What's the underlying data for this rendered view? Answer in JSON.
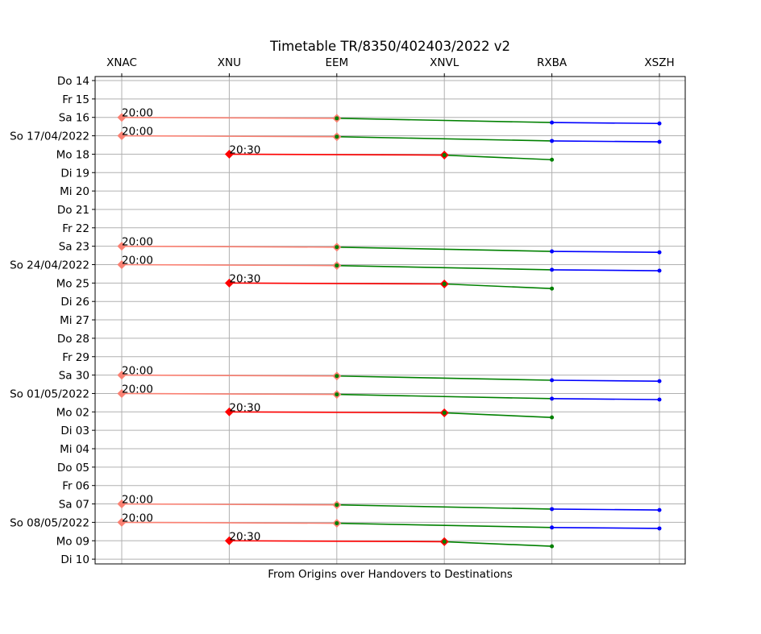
{
  "chart_data": {
    "type": "line",
    "title": "Timetable TR/8350/402403/2022 v2",
    "xlabel": "From Origins over Handovers to Destinations",
    "ylabel": "",
    "grid": true,
    "x_categories": [
      "XNAC",
      "XNU",
      "EEM",
      "XNVL",
      "RXBA",
      "XSZH"
    ],
    "y_ticks": [
      "Do 14",
      "Fr 15",
      "Sa 16",
      "So 17/04/2022",
      "Mo 18",
      "Di 19",
      "Mi 20",
      "Do 21",
      "Fr 22",
      "Sa 23",
      "So 24/04/2022",
      "Mo 25",
      "Di 26",
      "Mi 27",
      "Do 28",
      "Fr 29",
      "Sa 30",
      "So 01/05/2022",
      "Mo 02",
      "Di 03",
      "Mi 04",
      "Do 05",
      "Fr 06",
      "Sa 07",
      "So 08/05/2022",
      "Mo 09",
      "Di 10"
    ],
    "y_inverted": true,
    "colors": {
      "origin_leg": "#fa8072",
      "xnu_leg": "#ff0000",
      "handover_leg": "#008000",
      "destination_leg": "#0000ff"
    },
    "trips": [
      {
        "label": "20:00",
        "start": "Sa 16",
        "points": [
          [
            "XNAC",
            2.0
          ],
          [
            "EEM",
            2.05
          ],
          [
            "RXBA",
            2.28
          ],
          [
            "XSZH",
            2.33
          ]
        ]
      },
      {
        "label": "20:00",
        "start": "So 17/04/2022",
        "points": [
          [
            "XNAC",
            3.0
          ],
          [
            "EEM",
            3.05
          ],
          [
            "RXBA",
            3.28
          ],
          [
            "XSZH",
            3.33
          ]
        ]
      },
      {
        "label": "20:30",
        "start": "Mo 18",
        "points": [
          [
            "XNU",
            4.0
          ],
          [
            "XNVL",
            4.05
          ],
          [
            "RXBA",
            4.3
          ]
        ]
      },
      {
        "label": "20:00",
        "start": "Sa 23",
        "points": [
          [
            "XNAC",
            9.0
          ],
          [
            "EEM",
            9.05
          ],
          [
            "RXBA",
            9.28
          ],
          [
            "XSZH",
            9.33
          ]
        ]
      },
      {
        "label": "20:00",
        "start": "So 24/04/2022",
        "points": [
          [
            "XNAC",
            10.0
          ],
          [
            "EEM",
            10.05
          ],
          [
            "RXBA",
            10.28
          ],
          [
            "XSZH",
            10.33
          ]
        ]
      },
      {
        "label": "20:30",
        "start": "Mo 25",
        "points": [
          [
            "XNU",
            11.0
          ],
          [
            "XNVL",
            11.05
          ],
          [
            "RXBA",
            11.3
          ]
        ]
      },
      {
        "label": "20:00",
        "start": "Sa 30",
        "points": [
          [
            "XNAC",
            16.0
          ],
          [
            "EEM",
            16.05
          ],
          [
            "RXBA",
            16.28
          ],
          [
            "XSZH",
            16.33
          ]
        ]
      },
      {
        "label": "20:00",
        "start": "So 01/05/2022",
        "points": [
          [
            "XNAC",
            17.0
          ],
          [
            "EEM",
            17.05
          ],
          [
            "RXBA",
            17.28
          ],
          [
            "XSZH",
            17.33
          ]
        ]
      },
      {
        "label": "20:30",
        "start": "Mo 02",
        "points": [
          [
            "XNU",
            18.0
          ],
          [
            "XNVL",
            18.05
          ],
          [
            "RXBA",
            18.3
          ]
        ]
      },
      {
        "label": "20:00",
        "start": "Sa 07",
        "points": [
          [
            "XNAC",
            23.0
          ],
          [
            "EEM",
            23.05
          ],
          [
            "RXBA",
            23.28
          ],
          [
            "XSZH",
            23.33
          ]
        ]
      },
      {
        "label": "20:00",
        "start": "So 08/05/2022",
        "points": [
          [
            "XNAC",
            24.0
          ],
          [
            "EEM",
            24.05
          ],
          [
            "RXBA",
            24.28
          ],
          [
            "XSZH",
            24.33
          ]
        ]
      },
      {
        "label": "20:30",
        "start": "Mo 09",
        "points": [
          [
            "XNU",
            25.0
          ],
          [
            "XNVL",
            25.05
          ],
          [
            "RXBA",
            25.3
          ]
        ]
      }
    ]
  }
}
